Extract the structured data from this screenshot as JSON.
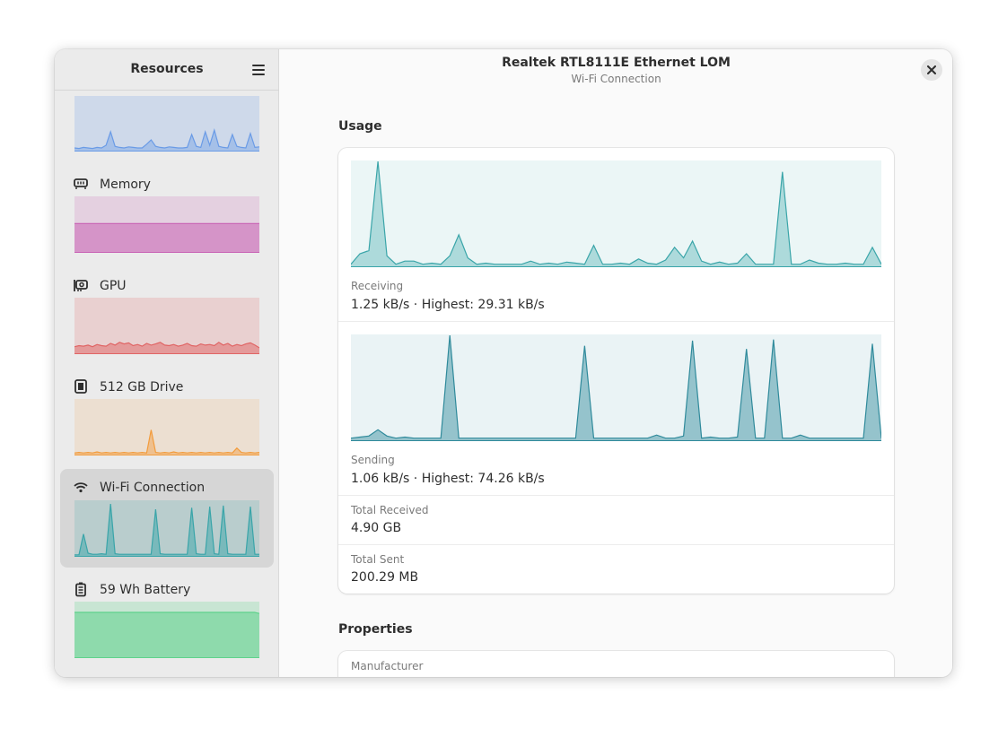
{
  "sidebar": {
    "title": "Resources",
    "menu_icon": "hamburger-menu-icon",
    "items": [
      {
        "label": "Memory",
        "icon": "memory-icon"
      },
      {
        "label": "GPU",
        "icon": "gpu-icon"
      },
      {
        "label": "512 GB Drive",
        "icon": "drive-icon"
      },
      {
        "label": "Wi-Fi Connection",
        "icon": "wifi-icon"
      },
      {
        "label": "59 Wh Battery",
        "icon": "battery-icon"
      }
    ]
  },
  "header": {
    "title": "Realtek RTL8111E Ethernet LOM",
    "subtitle": "Wi-Fi Connection",
    "close_icon": "close-icon"
  },
  "usage": {
    "section_title": "Usage",
    "receiving_label": "Receiving",
    "receiving_value": "1.25 kB/s · Highest: 29.31 kB/s",
    "sending_label": "Sending",
    "sending_value": "1.06 kB/s · Highest: 74.26 kB/s",
    "total_received_label": "Total Received",
    "total_received_value": "4.90 GB",
    "total_sent_label": "Total Sent",
    "total_sent_value": "200.29 MB"
  },
  "properties": {
    "section_title": "Properties",
    "manufacturer_label": "Manufacturer"
  },
  "colors": {
    "cpu": "#6a9be6",
    "memory": "#c862b4",
    "gpu": "#e06464",
    "drive": "#f39c3c",
    "network": "#3aa5a9",
    "battery": "#5fd28c",
    "sending": "#2f8a9b"
  },
  "graphs": {
    "cpu": [
      0.05,
      0.04,
      0.06,
      0.05,
      0.04,
      0.06,
      0.05,
      0.1,
      0.35,
      0.08,
      0.06,
      0.05,
      0.07,
      0.06,
      0.05,
      0.05,
      0.12,
      0.2,
      0.08,
      0.06,
      0.05,
      0.07,
      0.06,
      0.05,
      0.05,
      0.06,
      0.3,
      0.08,
      0.06,
      0.35,
      0.1,
      0.38,
      0.08,
      0.06,
      0.05,
      0.3,
      0.08,
      0.06,
      0.05,
      0.32,
      0.06,
      0.07
    ],
    "memory": [
      0.52,
      0.52,
      0.52,
      0.52,
      0.52,
      0.52,
      0.52,
      0.52,
      0.52,
      0.52,
      0.52,
      0.52,
      0.52,
      0.52,
      0.52,
      0.52,
      0.52,
      0.52,
      0.52,
      0.52
    ],
    "gpu": [
      0.12,
      0.14,
      0.13,
      0.15,
      0.12,
      0.16,
      0.14,
      0.13,
      0.18,
      0.15,
      0.2,
      0.17,
      0.19,
      0.14,
      0.16,
      0.13,
      0.18,
      0.15,
      0.17,
      0.2,
      0.15,
      0.14,
      0.16,
      0.13,
      0.15,
      0.18,
      0.14,
      0.13,
      0.17,
      0.15,
      0.16,
      0.14,
      0.2,
      0.15,
      0.18,
      0.13,
      0.16,
      0.14,
      0.17,
      0.19,
      0.15,
      0.1
    ],
    "drive": [
      0.03,
      0.04,
      0.03,
      0.04,
      0.03,
      0.05,
      0.03,
      0.04,
      0.03,
      0.04,
      0.03,
      0.04,
      0.03,
      0.04,
      0.03,
      0.04,
      0.03,
      0.45,
      0.04,
      0.03,
      0.04,
      0.03,
      0.05,
      0.03,
      0.04,
      0.03,
      0.04,
      0.03,
      0.04,
      0.03,
      0.04,
      0.03,
      0.04,
      0.03,
      0.04,
      0.03,
      0.12,
      0.04,
      0.03,
      0.04,
      0.03,
      0.04
    ],
    "wifi": [
      0.02,
      0.02,
      0.4,
      0.05,
      0.03,
      0.03,
      0.04,
      0.03,
      0.95,
      0.04,
      0.03,
      0.03,
      0.03,
      0.03,
      0.03,
      0.03,
      0.03,
      0.03,
      0.85,
      0.04,
      0.03,
      0.03,
      0.03,
      0.03,
      0.03,
      0.03,
      0.88,
      0.04,
      0.03,
      0.03,
      0.9,
      0.04,
      0.03,
      0.92,
      0.04,
      0.03,
      0.03,
      0.03,
      0.03,
      0.9,
      0.03,
      0.03
    ],
    "battery": [
      0.82,
      0.82,
      0.82,
      0.82,
      0.82,
      0.82,
      0.82,
      0.82,
      0.82,
      0.82,
      0.82,
      0.82,
      0.82,
      0.82,
      0.82,
      0.82,
      0.82,
      0.82,
      0.82,
      0.82,
      0.82,
      0.82,
      0.82,
      0.82,
      0.82,
      0.82,
      0.82,
      0.82,
      0.82,
      0.82,
      0.82,
      0.82,
      0.82,
      0.82,
      0.82,
      0.82,
      0.82,
      0.82,
      0.82,
      0.8
    ],
    "receiving": [
      0.02,
      0.12,
      0.15,
      1.0,
      0.1,
      0.02,
      0.05,
      0.05,
      0.02,
      0.03,
      0.02,
      0.1,
      0.3,
      0.08,
      0.02,
      0.03,
      0.02,
      0.02,
      0.02,
      0.02,
      0.05,
      0.02,
      0.03,
      0.02,
      0.04,
      0.03,
      0.02,
      0.2,
      0.02,
      0.02,
      0.03,
      0.02,
      0.07,
      0.03,
      0.02,
      0.06,
      0.18,
      0.08,
      0.24,
      0.05,
      0.02,
      0.04,
      0.02,
      0.03,
      0.12,
      0.02,
      0.02,
      0.02,
      0.9,
      0.02,
      0.02,
      0.06,
      0.03,
      0.02,
      0.02,
      0.03,
      0.02,
      0.02,
      0.18,
      0.02
    ],
    "sending": [
      0.02,
      0.03,
      0.04,
      0.1,
      0.04,
      0.02,
      0.03,
      0.02,
      0.02,
      0.02,
      0.02,
      1.0,
      0.02,
      0.02,
      0.02,
      0.02,
      0.02,
      0.02,
      0.02,
      0.02,
      0.02,
      0.02,
      0.02,
      0.02,
      0.02,
      0.02,
      0.9,
      0.02,
      0.02,
      0.02,
      0.02,
      0.02,
      0.02,
      0.02,
      0.05,
      0.02,
      0.02,
      0.04,
      0.95,
      0.02,
      0.03,
      0.02,
      0.02,
      0.03,
      0.87,
      0.02,
      0.02,
      0.96,
      0.02,
      0.02,
      0.05,
      0.02,
      0.02,
      0.02,
      0.02,
      0.02,
      0.02,
      0.02,
      0.92,
      0.02
    ]
  }
}
